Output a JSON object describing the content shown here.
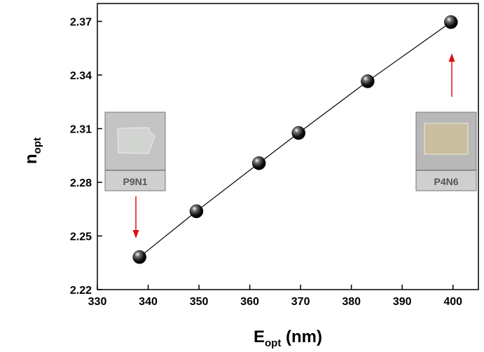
{
  "chart_data": {
    "type": "scatter",
    "xlabel": [
      "E",
      "opt",
      " (nm)"
    ],
    "ylabel": [
      "n",
      "opt"
    ],
    "x": [
      338.3,
      349.5,
      361.8,
      369.6,
      383.2,
      399.6
    ],
    "values": [
      2.2382,
      2.2638,
      2.2907,
      2.3076,
      2.3365,
      2.3696
    ],
    "color": "#000000",
    "connect": true,
    "xlim": [
      330,
      405
    ],
    "xticks": [
      330,
      340,
      350,
      360,
      370,
      380,
      390,
      400
    ],
    "ylim": [
      2.22,
      2.38
    ],
    "yticks": [
      2.22,
      2.25,
      2.28,
      2.31,
      2.34,
      2.37
    ],
    "annotations": [
      {
        "label": "P9N1"
      },
      {
        "label": "P4N6"
      }
    ]
  }
}
